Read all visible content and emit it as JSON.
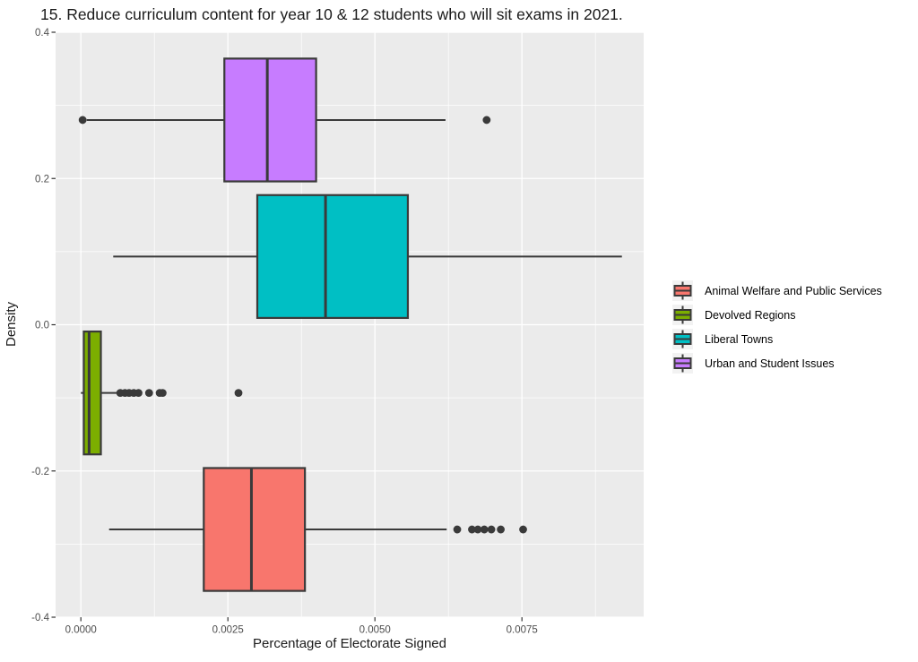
{
  "chart_data": {
    "type": "boxplot",
    "orientation": "horizontal",
    "title": "15. Reduce curriculum content for year 10 & 12 students who will sit exams in 2021.",
    "xlabel": "Percentage of Electorate Signed",
    "ylabel": "Density",
    "xlim": [
      -0.00043,
      0.00957
    ],
    "ylim": [
      -0.4,
      0.4
    ],
    "x_ticks": [
      {
        "value": 0.0,
        "label": "0.0000"
      },
      {
        "value": 0.0025,
        "label": "0.0025"
      },
      {
        "value": 0.005,
        "label": "0.0050"
      },
      {
        "value": 0.0075,
        "label": "0.0075"
      }
    ],
    "y_ticks": [
      {
        "value": 0.4,
        "label": "0.4"
      },
      {
        "value": 0.2,
        "label": "0.2"
      },
      {
        "value": 0.0,
        "label": "0.0"
      },
      {
        "value": -0.2,
        "label": "-0.2"
      },
      {
        "value": -0.4,
        "label": "-0.4"
      }
    ],
    "x_minor_gridlines": [
      0.00125,
      0.00375,
      0.00625,
      0.00875
    ],
    "y_minor_gridlines": [
      0.3,
      0.1,
      -0.1,
      -0.3
    ],
    "grid": {
      "major": true,
      "minor": true
    },
    "panel_background": "#EBEBEB",
    "gridline_color": "#FFFFFF",
    "outline_color": "#3A3A3A",
    "box_half_height": 0.084,
    "series": [
      {
        "name": "Urban and Student Issues",
        "color": "#C77CFF",
        "y_center": 0.28,
        "whisker_low": 0.0001,
        "q1": 0.00244,
        "median": 0.00317,
        "q3": 0.004,
        "whisker_high": 0.0062,
        "outliers": [
          3e-05,
          0.0069
        ]
      },
      {
        "name": "Liberal Towns",
        "color": "#00BFC4",
        "y_center": 0.0933,
        "whisker_low": 0.00055,
        "q1": 0.003,
        "median": 0.00416,
        "q3": 0.00556,
        "whisker_high": 0.0092,
        "outliers": []
      },
      {
        "name": "Devolved Regions",
        "color": "#7CAE00",
        "y_center": -0.0933,
        "whisker_low": 0.0,
        "q1": 5e-05,
        "median": 0.00014,
        "q3": 0.00034,
        "whisker_high": 0.00061,
        "outliers": [
          0.00067,
          0.00075,
          0.00082,
          0.0009,
          0.00098,
          0.00116,
          0.00134,
          0.00139,
          0.00268
        ]
      },
      {
        "name": "Animal Welfare and Public Services",
        "color": "#F8766D",
        "y_center": -0.28,
        "whisker_low": 0.00048,
        "q1": 0.00209,
        "median": 0.0029,
        "q3": 0.00381,
        "whisker_high": 0.00622,
        "outliers": [
          0.0064,
          0.00665,
          0.00675,
          0.00686,
          0.00698,
          0.00714,
          0.00752
        ]
      }
    ],
    "legend_position": "right",
    "legend": [
      {
        "label": "Animal Welfare and Public Services",
        "color": "#F8766D"
      },
      {
        "label": "Devolved Regions",
        "color": "#7CAE00"
      },
      {
        "label": "Liberal Towns",
        "color": "#00BFC4"
      },
      {
        "label": "Urban and Student Issues",
        "color": "#C77CFF"
      }
    ]
  }
}
